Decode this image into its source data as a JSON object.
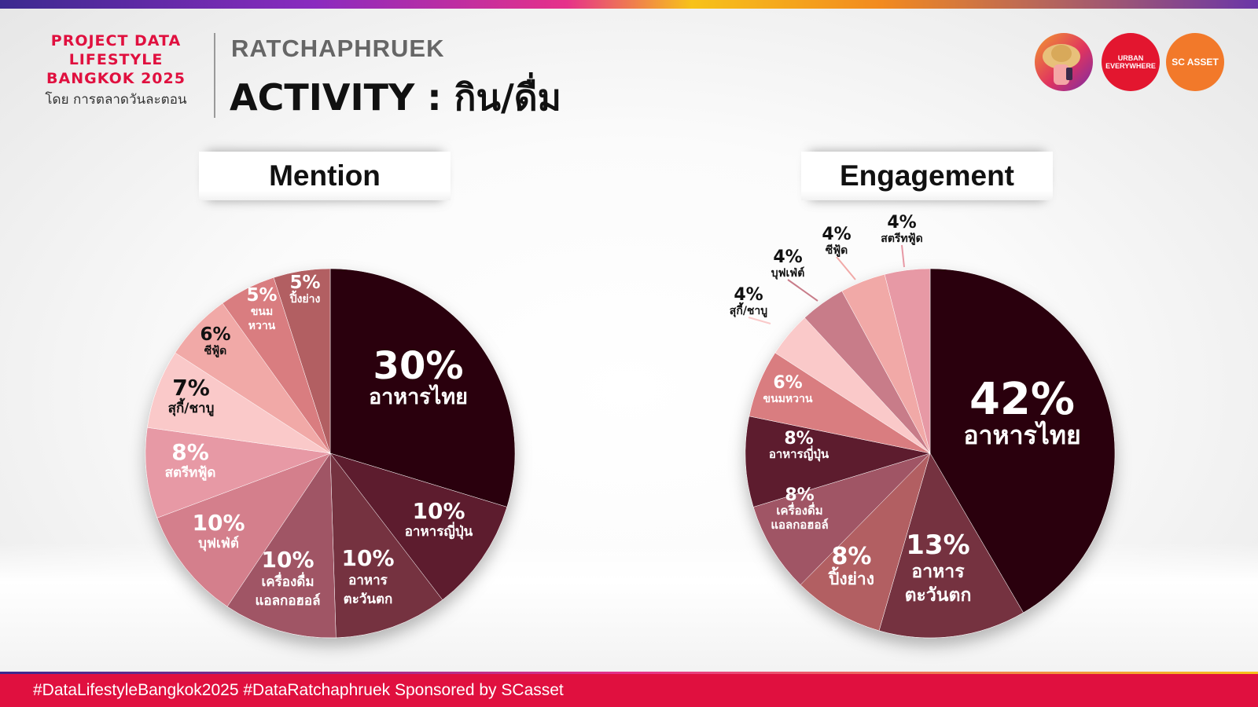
{
  "header": {
    "brand_lines": [
      "PROJECT DATA",
      "LIFESTYLE",
      "BANGKOK 2025"
    ],
    "brand_sub": "โดย การตลาดวันละตอน",
    "location": "RATCHAPHRUEK",
    "title": "ACTIVITY : กิน/ดื่ม"
  },
  "logos": {
    "urban": "URBAN EVERYWHERE",
    "sc": "SC ASSET"
  },
  "colors": {
    "thai_food": "#2a0510",
    "japanese": "#5d1d2e",
    "western": "#743241",
    "alcohol": "#a05565",
    "buffet": "#d47f8c",
    "streetfood": "#e799a5",
    "sukishabu": "#fac9c9",
    "seafood": "#f1a9a7",
    "dessert": "#d97d80",
    "grill": "#b25e62",
    "footer": "#e0103f",
    "brand": "#e0103f"
  },
  "chart_data": [
    {
      "type": "pie",
      "title": "Mention",
      "slices": [
        {
          "label": "อาหารไทย",
          "value": 30,
          "pct": "30%",
          "color": "#2a0510",
          "text_color": "#ffffff"
        },
        {
          "label": "อาหารญี่ปุ่น",
          "value": 10,
          "pct": "10%",
          "color": "#5d1d2e",
          "text_color": "#ffffff"
        },
        {
          "label": "อาหาร ตะวันตก",
          "value": 10,
          "pct": "10%",
          "color": "#743241",
          "text_color": "#ffffff"
        },
        {
          "label": "เครื่องดื่ม แอลกอฮอล์",
          "value": 10,
          "pct": "10%",
          "color": "#a05565",
          "text_color": "#ffffff"
        },
        {
          "label": "บุฟเฟ่ต์",
          "value": 10,
          "pct": "10%",
          "color": "#d47f8c",
          "text_color": "#ffffff"
        },
        {
          "label": "สตรีทฟู้ด",
          "value": 8,
          "pct": "8%",
          "color": "#e799a5",
          "text_color": "#ffffff"
        },
        {
          "label": "สุกี้/ชาบู",
          "value": 7,
          "pct": "7%",
          "color": "#fac9c9",
          "text_color": "#111111"
        },
        {
          "label": "ซีฟู้ด",
          "value": 6,
          "pct": "6%",
          "color": "#f1a9a7",
          "text_color": "#111111"
        },
        {
          "label": "ขนม หวาน",
          "value": 5,
          "pct": "5%",
          "color": "#d97d80",
          "text_color": "#ffffff"
        },
        {
          "label": "ปิ้งย่าง",
          "value": 5,
          "pct": "5%",
          "color": "#b25e62",
          "text_color": "#ffffff"
        }
      ]
    },
    {
      "type": "pie",
      "title": "Engagement",
      "slices": [
        {
          "label": "อาหารไทย",
          "value": 42,
          "pct": "42%",
          "color": "#2a0510",
          "text_color": "#ffffff"
        },
        {
          "label": "อาหาร ตะวันตก",
          "value": 13,
          "pct": "13%",
          "color": "#743241",
          "text_color": "#ffffff"
        },
        {
          "label": "ปิ้งย่าง",
          "value": 8,
          "pct": "8%",
          "color": "#b25e62",
          "text_color": "#ffffff"
        },
        {
          "label": "เครื่องดื่ม แอลกอฮอล์",
          "value": 8,
          "pct": "8%",
          "color": "#a05565",
          "text_color": "#ffffff"
        },
        {
          "label": "อาหารญี่ปุ่น",
          "value": 8,
          "pct": "8%",
          "color": "#5d1d2e",
          "text_color": "#ffffff"
        },
        {
          "label": "ขนมหวาน",
          "value": 6,
          "pct": "6%",
          "color": "#d97d80",
          "text_color": "#ffffff"
        },
        {
          "label": "สุกี้/ชาบู",
          "value": 4,
          "pct": "4%",
          "color": "#fac9c9",
          "text_color": "#111111"
        },
        {
          "label": "บุฟเฟ่ต์",
          "value": 4,
          "pct": "4%",
          "color": "#c87c89",
          "text_color": "#111111"
        },
        {
          "label": "ซีฟู้ด",
          "value": 4,
          "pct": "4%",
          "color": "#f1a9a7",
          "text_color": "#111111"
        },
        {
          "label": "สตรีทฟู้ด",
          "value": 4,
          "pct": "4%",
          "color": "#e799a5",
          "text_color": "#111111"
        }
      ]
    }
  ],
  "footer": {
    "text": "#DataLifestyleBangkok2025 #DataRatchaphruek Sponsored by SCasset"
  }
}
